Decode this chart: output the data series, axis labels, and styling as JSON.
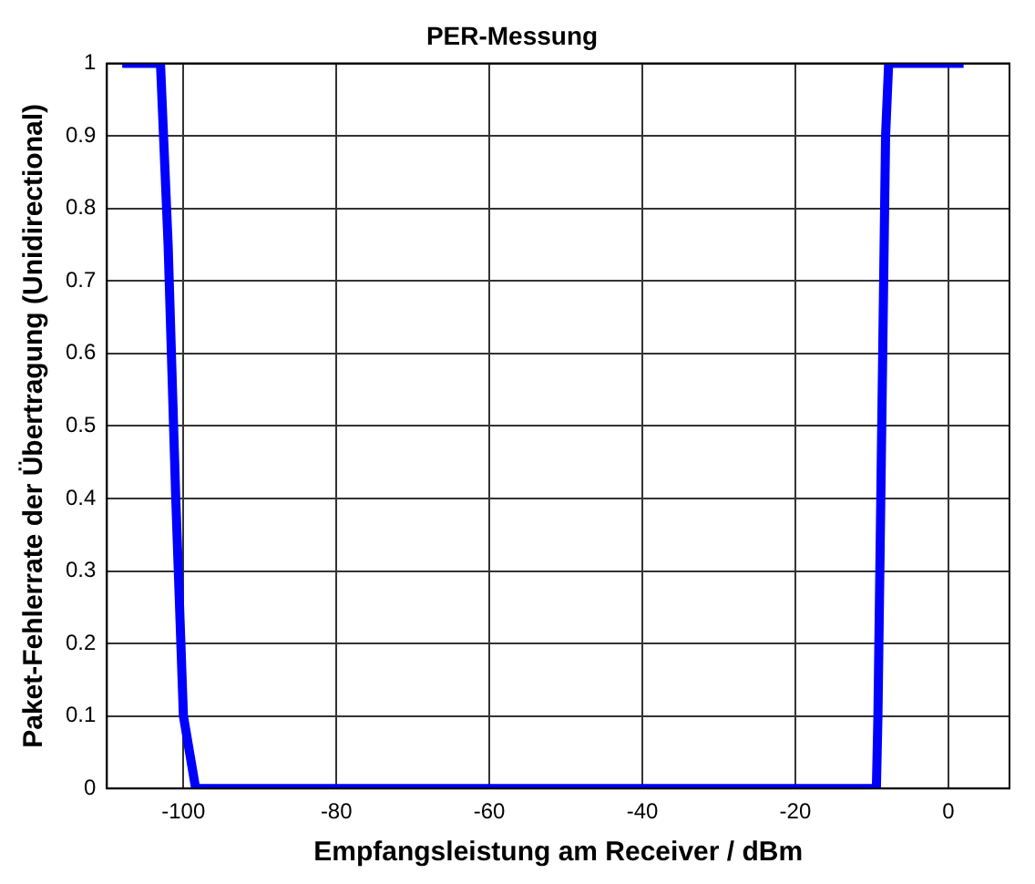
{
  "chart_data": {
    "type": "line",
    "title": "PER-Messung",
    "xlabel": "Empfangsleistung am Receiver / dBm",
    "ylabel": "Paket-Fehlerrate der Übertragung (Unidirectional)",
    "series": [
      {
        "color": "#0000ff",
        "x": [
          -108,
          -103,
          -102,
          -101,
          -100,
          -98.4,
          -9.4,
          -9.2,
          -8.2,
          -7.8,
          2
        ],
        "values": [
          1,
          1,
          0.75,
          0.4,
          0.1,
          0,
          0,
          0.1,
          0.9,
          1,
          1
        ]
      }
    ],
    "xlim": [
      -110,
      8
    ],
    "xticks": [
      -100,
      -80,
      -60,
      -40,
      -20,
      0
    ],
    "ylim": [
      0,
      1
    ],
    "yticks": [
      0,
      0.1,
      0.2,
      0.3,
      0.4,
      0.5,
      0.6,
      0.7,
      0.8,
      0.9,
      1
    ],
    "grid": true,
    "legend": false,
    "marker": "none",
    "line_style": "solid"
  }
}
